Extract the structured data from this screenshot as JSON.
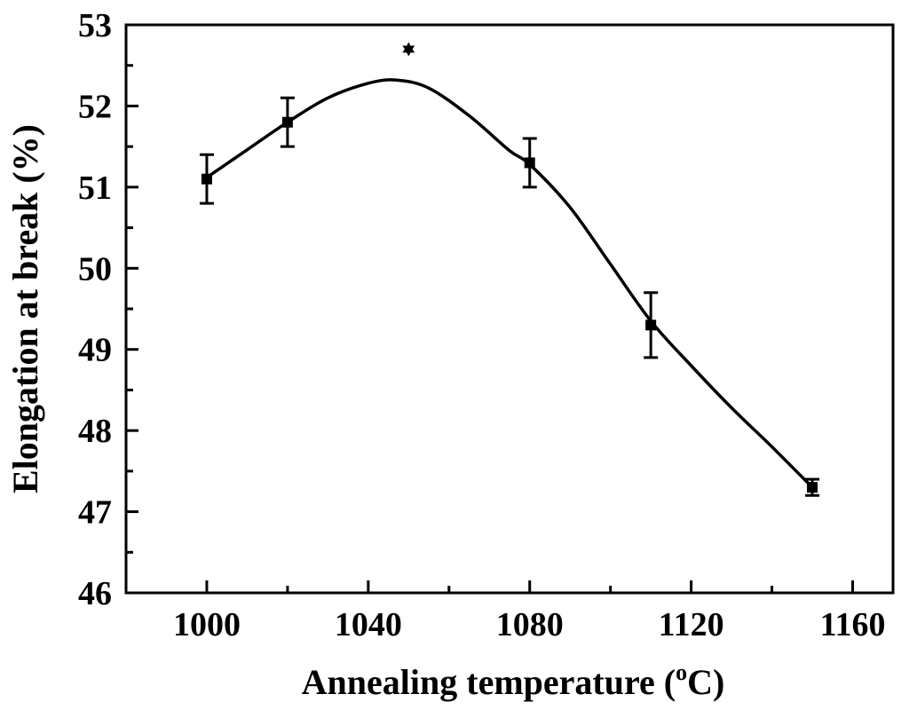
{
  "chart_data": {
    "type": "line",
    "title": "",
    "xlabel": "Annealing temperature (",
    "xlabel_sup": "o",
    "xlabel_tail": "C)",
    "ylabel": "Elongation at break (%)",
    "xlim": [
      980,
      1170
    ],
    "ylim": [
      46,
      53
    ],
    "xticks": [
      1000,
      1040,
      1080,
      1120,
      1160
    ],
    "xticks_minor": [
      1020,
      1060,
      1100,
      1140
    ],
    "yticks": [
      46,
      47,
      48,
      49,
      50,
      51,
      52,
      53
    ],
    "yticks_minor": [
      46.5,
      47.5,
      48.5,
      49.5,
      50.5,
      51.5,
      52.5
    ],
    "series": [
      {
        "name": "Elongation",
        "x": [
          1000,
          1020,
          1050,
          1080,
          1110,
          1150
        ],
        "y": [
          51.1,
          51.8,
          52.7,
          51.3,
          49.3,
          47.3
        ],
        "err": [
          0.3,
          0.3,
          0.0,
          0.3,
          0.4,
          0.1
        ],
        "markers": [
          "square",
          "square",
          "star",
          "square",
          "square",
          "square"
        ]
      }
    ],
    "fit_curve": {
      "x": [
        1000,
        1010,
        1020,
        1030,
        1040,
        1047,
        1055,
        1065,
        1075,
        1080,
        1090,
        1100,
        1110,
        1120,
        1130,
        1140,
        1150
      ],
      "y": [
        51.12,
        51.46,
        51.8,
        52.1,
        52.28,
        52.32,
        52.22,
        51.88,
        51.45,
        51.28,
        50.75,
        50.05,
        49.35,
        48.8,
        48.28,
        47.8,
        47.3
      ]
    }
  }
}
